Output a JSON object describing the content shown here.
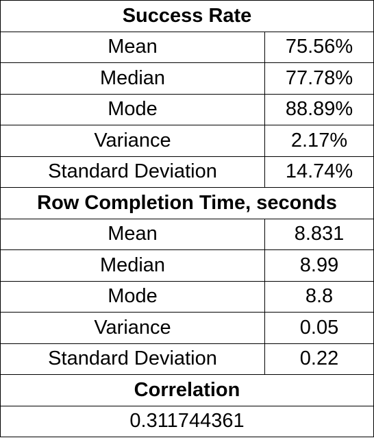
{
  "success_rate": {
    "header": "Success Rate",
    "rows": [
      {
        "label": "Mean",
        "value": "75.56%"
      },
      {
        "label": "Median",
        "value": "77.78%"
      },
      {
        "label": "Mode",
        "value": "88.89%"
      },
      {
        "label": "Variance",
        "value": "2.17%"
      },
      {
        "label": "Standard Deviation",
        "value": "14.74%"
      }
    ]
  },
  "row_completion": {
    "header": "Row Completion Time, seconds",
    "rows": [
      {
        "label": "Mean",
        "value": "8.831"
      },
      {
        "label": "Median",
        "value": "8.99"
      },
      {
        "label": "Mode",
        "value": "8.8"
      },
      {
        "label": "Variance",
        "value": "0.05"
      },
      {
        "label": "Standard Deviation",
        "value": "0.22"
      }
    ]
  },
  "correlation": {
    "header": "Correlation",
    "value": "0.311744361"
  }
}
